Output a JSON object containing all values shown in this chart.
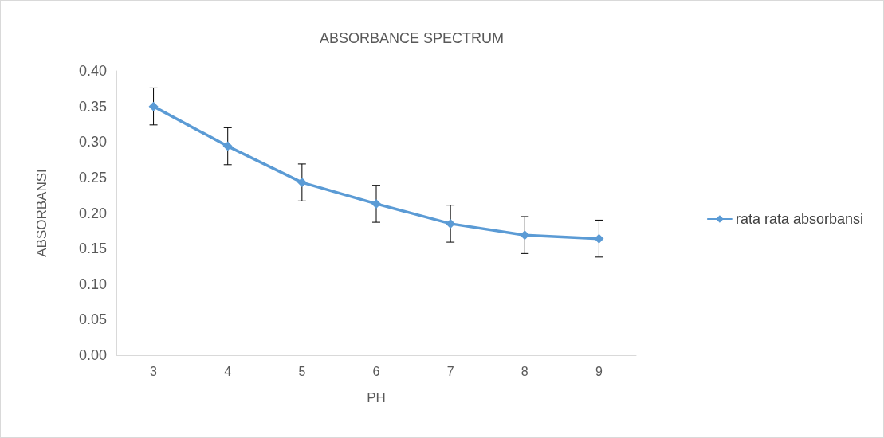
{
  "chart_data": {
    "type": "line",
    "title": "ABSORBANCE SPECTRUM",
    "xlabel": "PH",
    "ylabel": "ABSORBANSI",
    "categories": [
      "3",
      "4",
      "5",
      "6",
      "7",
      "8",
      "9"
    ],
    "series": [
      {
        "name": "rata rata absorbansi",
        "color": "#5b9bd5",
        "values": [
          0.35,
          0.294,
          0.243,
          0.213,
          0.185,
          0.169,
          0.164
        ],
        "errors": [
          0.026,
          0.026,
          0.026,
          0.026,
          0.026,
          0.026,
          0.026
        ]
      }
    ],
    "ylim": [
      0,
      0.4
    ],
    "yticks": [
      {
        "value": 0,
        "label": "0.00"
      },
      {
        "value": 0.05,
        "label": "0.05"
      },
      {
        "value": 0.1,
        "label": "0.10"
      },
      {
        "value": 0.15,
        "label": "0.15"
      },
      {
        "value": 0.2,
        "label": "0.20"
      },
      {
        "value": 0.25,
        "label": "0.25"
      },
      {
        "value": 0.3,
        "label": "0.30"
      },
      {
        "value": 0.35,
        "label": "0.35"
      },
      {
        "value": 0.4,
        "label": "0.40"
      }
    ],
    "grid": false,
    "legend": "right",
    "marker": "diamond",
    "line_style": "solid"
  }
}
